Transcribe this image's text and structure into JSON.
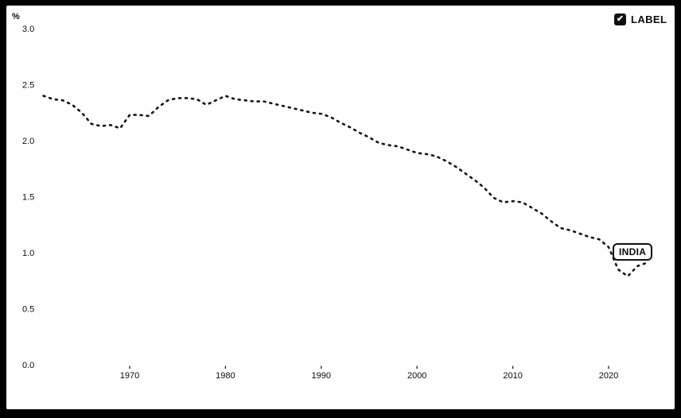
{
  "controls": {
    "label_toggle": {
      "label": "LABEL",
      "checked": true,
      "check_glyph": "✔"
    }
  },
  "series_label": "INDIA",
  "colors": {
    "frame": "#000000",
    "panel": "#ffffff",
    "line": "#141414"
  },
  "chart_data": {
    "type": "line",
    "style": "dashed",
    "title": "",
    "xlabel": "",
    "ylabel": "%",
    "ylim": [
      0.0,
      3.0
    ],
    "grid": false,
    "legend": "inline-end-label",
    "yticks": [
      "3.0",
      "2.5",
      "2.0",
      "1.5",
      "1.0",
      "0.5",
      "0.0"
    ],
    "xticks": [
      1970,
      1980,
      1990,
      2000,
      2010,
      2020
    ],
    "x": [
      1961,
      1962,
      1963,
      1964,
      1965,
      1966,
      1967,
      1968,
      1969,
      1970,
      1971,
      1972,
      1973,
      1974,
      1975,
      1976,
      1977,
      1978,
      1979,
      1980,
      1981,
      1982,
      1983,
      1984,
      1985,
      1986,
      1987,
      1988,
      1989,
      1990,
      1991,
      1992,
      1993,
      1994,
      1995,
      1996,
      1997,
      1998,
      1999,
      2000,
      2001,
      2002,
      2003,
      2004,
      2005,
      2006,
      2007,
      2008,
      2009,
      2010,
      2011,
      2012,
      2013,
      2014,
      2015,
      2016,
      2017,
      2018,
      2019,
      2020,
      2021,
      2022,
      2023,
      2024
    ],
    "series": [
      {
        "name": "INDIA",
        "values": [
          2.4,
          2.37,
          2.36,
          2.32,
          2.25,
          2.15,
          2.13,
          2.14,
          2.11,
          2.23,
          2.23,
          2.22,
          2.3,
          2.36,
          2.38,
          2.38,
          2.37,
          2.32,
          2.36,
          2.4,
          2.37,
          2.36,
          2.35,
          2.35,
          2.33,
          2.31,
          2.29,
          2.27,
          2.25,
          2.24,
          2.21,
          2.16,
          2.12,
          2.07,
          2.03,
          1.98,
          1.96,
          1.95,
          1.92,
          1.89,
          1.88,
          1.86,
          1.82,
          1.77,
          1.71,
          1.65,
          1.58,
          1.49,
          1.45,
          1.46,
          1.45,
          1.4,
          1.35,
          1.28,
          1.22,
          1.2,
          1.17,
          1.14,
          1.12,
          1.05,
          0.85,
          0.79,
          0.88,
          0.91
        ]
      }
    ]
  }
}
